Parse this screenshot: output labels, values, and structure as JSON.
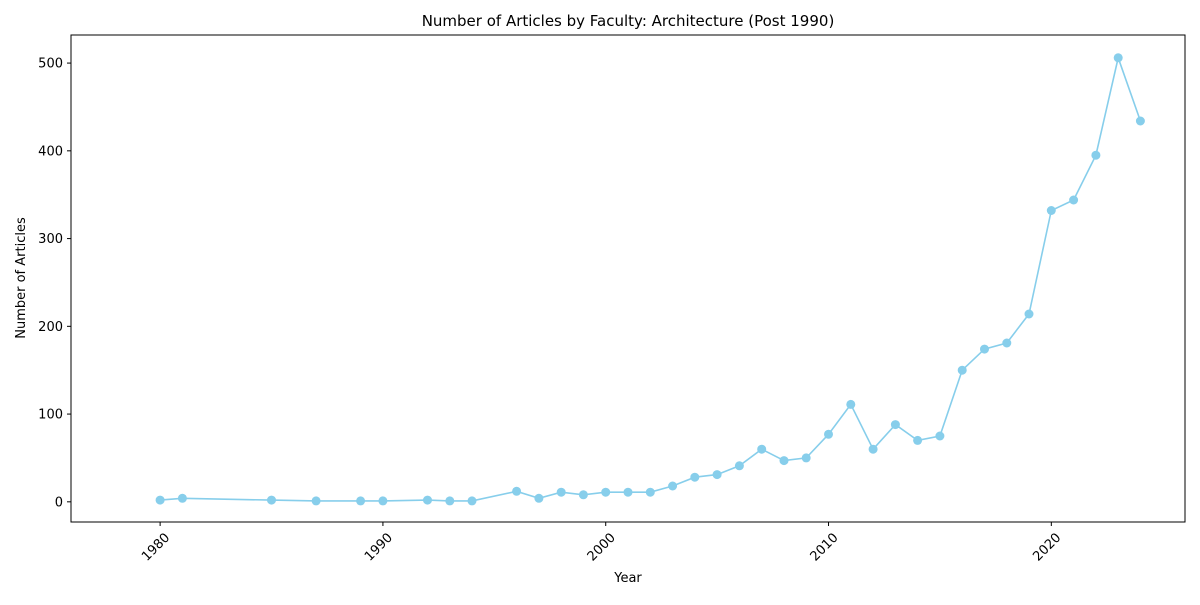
{
  "chart_data": {
    "type": "line",
    "title": "Number of Articles by Faculty: Architecture (Post 1990)",
    "xlabel": "Year",
    "ylabel": "Number of Articles",
    "xlim": [
      1976,
      2026
    ],
    "ylim": [
      -23,
      532
    ],
    "xticks": [
      1980,
      1990,
      2000,
      2010,
      2020
    ],
    "yticks": [
      0,
      100,
      200,
      300,
      400,
      500
    ],
    "grid": false,
    "legend": "none",
    "series": [
      {
        "color": "#87CEEB",
        "marker": "circle",
        "x": [
          1980,
          1981,
          1985,
          1987,
          1989,
          1990,
          1992,
          1993,
          1994,
          1996,
          1997,
          1998,
          1999,
          2000,
          2001,
          2002,
          2003,
          2004,
          2005,
          2006,
          2007,
          2008,
          2009,
          2010,
          2011,
          2012,
          2013,
          2014,
          2015,
          2016,
          2017,
          2018,
          2019,
          2020,
          2021,
          2022,
          2023,
          2024
        ],
        "y": [
          2,
          4,
          2,
          1,
          1,
          1,
          2,
          1,
          1,
          12,
          4,
          11,
          8,
          11,
          11,
          11,
          18,
          28,
          31,
          41,
          60,
          47,
          50,
          77,
          111,
          60,
          88,
          70,
          75,
          150,
          174,
          181,
          214,
          332,
          344,
          395,
          506,
          434
        ]
      }
    ]
  }
}
